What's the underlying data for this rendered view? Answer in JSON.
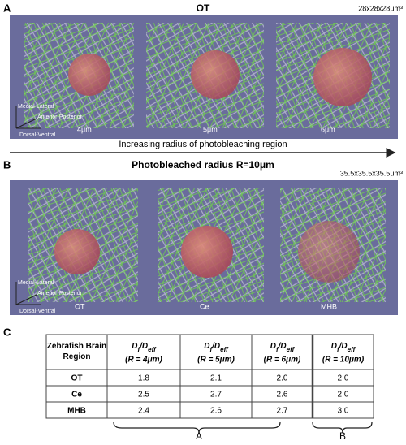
{
  "panel_a": {
    "label": "A",
    "title": "OT",
    "dimensions": "28x28x28μm³",
    "radii": [
      "4μm",
      "5μm",
      "6μm"
    ],
    "axes": [
      "Medial-Lateral",
      "Anterior-Posterior",
      "Dorsal-Ventral"
    ],
    "arrow_caption": "Increasing radius of photobleaching region"
  },
  "panel_b": {
    "label": "B",
    "title": "Photobleached radius R=10μm",
    "dimensions": "35.5x35.5x35.5μm³",
    "regions": [
      "OT",
      "Ce",
      "MHB"
    ],
    "axes": [
      "Medial-Lateral",
      "Anterior-Posterior",
      "Dorsal-Ventral"
    ]
  },
  "panel_c": {
    "label": "C",
    "table": {
      "corner": "Zebrafish Brain Region",
      "ratio": [
        "D",
        "f",
        "/D",
        "eff"
      ],
      "radii": [
        "(R = 4μm)",
        "(R = 5μm)",
        "(R = 6μm)",
        "(R = 10μm)"
      ],
      "rows": [
        [
          "OT",
          "1.8",
          "2.1",
          "2.0",
          "2.0"
        ],
        [
          "Ce",
          "2.5",
          "2.7",
          "2.6",
          "2.0"
        ],
        [
          "MHB",
          "2.4",
          "2.6",
          "2.7",
          "3.0"
        ]
      ]
    },
    "braces": [
      "A",
      "B"
    ]
  }
}
